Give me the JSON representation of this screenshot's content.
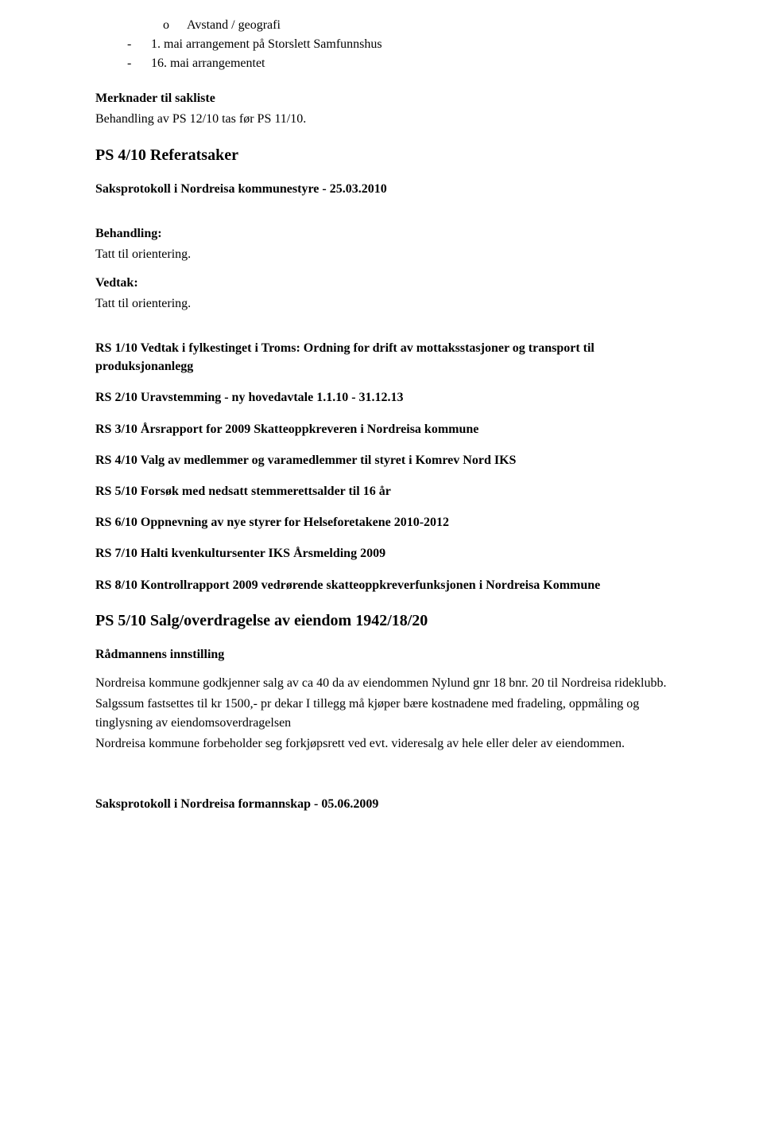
{
  "intro": {
    "sub_bullet_marker": "o",
    "sub_bullet_text": "Avstand / geografi",
    "dash1_marker": "-",
    "dash1_text": "1. mai arrangement på Storslett Samfunnshus",
    "dash2_marker": "-",
    "dash2_text": "16. mai arrangementet"
  },
  "merknader": {
    "title": "Merknader til sakliste",
    "line": "Behandling av PS 12/10 tas før PS 11/10."
  },
  "ps4": {
    "title": "PS 4/10 Referatsaker",
    "saksprotokoll": "Saksprotokoll i Nordreisa kommunestyre - 25.03.2010",
    "behandling_label": "Behandling:",
    "behandling_text": "Tatt til orientering.",
    "vedtak_label": "Vedtak:",
    "vedtak_text": "Tatt til orientering."
  },
  "rs": {
    "rs1": "RS 1/10 Vedtak i fylkestinget i Troms: Ordning for drift av mottaksstasjoner og transport til produksjonanlegg",
    "rs2": "RS 2/10 Uravstemming - ny hovedavtale 1.1.10 - 31.12.13",
    "rs3": "RS 3/10 Årsrapport for 2009 Skatteoppkreveren i Nordreisa kommune",
    "rs4": "RS 4/10 Valg av medlemmer og varamedlemmer til styret i Komrev Nord IKS",
    "rs5": "RS 5/10 Forsøk med nedsatt stemmerettsalder til 16 år",
    "rs6": "RS 6/10 Oppnevning av nye styrer for Helseforetakene 2010-2012",
    "rs7": "RS 7/10 Halti kvenkultursenter IKS Årsmelding 2009",
    "rs8": "RS 8/10 Kontrollrapport 2009 vedrørende skatteoppkreverfunksjonen i Nordreisa Kommune"
  },
  "ps5": {
    "title": "PS 5/10 Salg/overdragelse av eiendom 1942/18/20",
    "innstilling_label": "Rådmannens innstilling",
    "p1": "Nordreisa kommune godkjenner salg av ca 40 da av eiendommen Nylund gnr 18 bnr. 20 til Nordreisa rideklubb.",
    "p2": "Salgssum fastsettes til kr 1500,- pr dekar I tillegg må kjøper bære kostnadene med fradeling, oppmåling og tinglysning av eiendomsoverdragelsen",
    "p3": "Nordreisa kommune forbeholder seg forkjøpsrett ved evt. videresalg av hele eller deler av eiendommen."
  },
  "footer": {
    "saksprotokoll": "Saksprotokoll i Nordreisa formannskap - 05.06.2009"
  }
}
